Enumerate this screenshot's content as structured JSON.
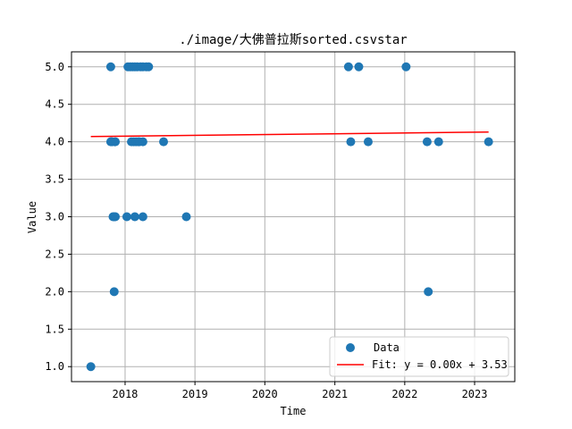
{
  "chart_data": {
    "type": "scatter",
    "title": "./image/大佛普拉斯sorted.csvstar",
    "xlabel": "Time",
    "ylabel": "Value",
    "x_ticks": [
      "2018",
      "2019",
      "2020",
      "2021",
      "2022",
      "2023"
    ],
    "y_ticks": [
      "1.0",
      "1.5",
      "2.0",
      "2.5",
      "3.0",
      "3.5",
      "4.0",
      "4.5",
      "5.0"
    ],
    "xlim": [
      "2017-03-27",
      "2023-07-30"
    ],
    "ylim": [
      0.8,
      5.2
    ],
    "grid": true,
    "legend": {
      "location": "lower right",
      "data_label": "Data",
      "fit_label": "Fit: y = 0.00x + 3.53"
    },
    "colors": {
      "data": "#1f77b4",
      "fit": "#ff0000",
      "grid": "#b0b0b0"
    },
    "series": [
      {
        "name": "Data",
        "points": [
          [
            "2017-07-06",
            1
          ],
          [
            "2017-10-18",
            5
          ],
          [
            "2017-10-18",
            4
          ],
          [
            "2017-10-24",
            4
          ],
          [
            "2017-10-30",
            3
          ],
          [
            "2017-11-05",
            2
          ],
          [
            "2017-11-05",
            3
          ],
          [
            "2017-11-11",
            4
          ],
          [
            "2017-11-11",
            3
          ],
          [
            "2018-01-10",
            3
          ],
          [
            "2018-01-16",
            5
          ],
          [
            "2018-01-28",
            5
          ],
          [
            "2018-02-03",
            4
          ],
          [
            "2018-02-09",
            5
          ],
          [
            "2018-02-15",
            4
          ],
          [
            "2018-02-21",
            3
          ],
          [
            "2018-02-21",
            5
          ],
          [
            "2018-02-27",
            4
          ],
          [
            "2018-03-05",
            5
          ],
          [
            "2018-03-11",
            4
          ],
          [
            "2018-03-17",
            4
          ],
          [
            "2018-03-23",
            5
          ],
          [
            "2018-04-04",
            3
          ],
          [
            "2018-04-04",
            4
          ],
          [
            "2018-04-04",
            5
          ],
          [
            "2018-04-22",
            5
          ],
          [
            "2018-05-04",
            5
          ],
          [
            "2018-07-21",
            4
          ],
          [
            "2018-11-17",
            3
          ],
          [
            "2021-03-13",
            5
          ],
          [
            "2021-03-25",
            4
          ],
          [
            "2021-05-06",
            5
          ],
          [
            "2021-06-24",
            4
          ],
          [
            "2022-01-08",
            5
          ],
          [
            "2022-04-28",
            4
          ],
          [
            "2022-05-04",
            2
          ],
          [
            "2022-06-27",
            4
          ],
          [
            "2023-03-15",
            4
          ]
        ]
      }
    ],
    "fit_line": {
      "name": "Fit: y = 0.00x + 3.53",
      "points": [
        [
          "2017-07-06",
          4.07
        ],
        [
          "2023-03-15",
          4.13
        ]
      ]
    }
  }
}
